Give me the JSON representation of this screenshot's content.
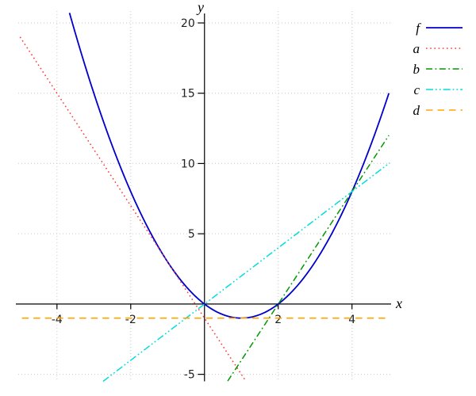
{
  "figure": {
    "kind": "function plot",
    "background": "#ffffff",
    "axis_color": "#000000",
    "grid_color": "#c9c9c9",
    "tick_label_color": "#222222"
  },
  "chart_data": {
    "type": "line",
    "title": "",
    "xlabel": "x",
    "ylabel": "y",
    "xlim": [
      -5.05,
      5.05
    ],
    "ylim": [
      -5.5,
      20.9
    ],
    "xticks": [
      -4,
      -2,
      2,
      4
    ],
    "yticks": [
      -5,
      5,
      10,
      15,
      20
    ],
    "grid": true,
    "legend_position": "top-right",
    "series": [
      {
        "name": "f",
        "formula": "x^2 - 2x",
        "coeffs": [
          1,
          -2,
          0
        ],
        "domain": [
          -3.66,
          5.0
        ],
        "color": "#0000cc",
        "dash": "solid",
        "width": 1.8,
        "key_points": [
          [
            -2,
            8
          ],
          [
            0,
            0
          ],
          [
            1,
            -1
          ],
          [
            2,
            0
          ],
          [
            4,
            8
          ],
          [
            5,
            15
          ]
        ]
      },
      {
        "name": "a",
        "formula": "-4x - 1",
        "coeffs": [
          0,
          -4,
          -1
        ],
        "domain": [
          -5.0,
          1.12
        ],
        "color": "#ff3333",
        "dash": "dotted",
        "width": 1.5,
        "key_points": [
          [
            -5,
            19
          ],
          [
            -1,
            3
          ],
          [
            0,
            -1
          ]
        ]
      },
      {
        "name": "b",
        "formula": "4x - 8",
        "coeffs": [
          0,
          4,
          -8
        ],
        "domain": [
          0.63,
          5.0
        ],
        "color": "#009900",
        "dash": "dashdot",
        "width": 1.5,
        "key_points": [
          [
            2,
            0
          ],
          [
            4,
            8
          ],
          [
            5,
            12
          ]
        ]
      },
      {
        "name": "c",
        "formula": "2x",
        "coeffs": [
          0,
          2,
          0
        ],
        "domain": [
          -2.75,
          5.02
        ],
        "color": "#00dddd",
        "dash": "dashdotdot",
        "width": 1.5,
        "key_points": [
          [
            -2.75,
            -5.5
          ],
          [
            0,
            0
          ],
          [
            4,
            8
          ],
          [
            5,
            10
          ]
        ]
      },
      {
        "name": "d",
        "formula": "-1",
        "coeffs": [
          0,
          0,
          -1
        ],
        "domain": [
          -4.95,
          5.0
        ],
        "color": "#ffa500",
        "dash": "dashed",
        "width": 1.6,
        "key_points": [
          [
            -5,
            -1
          ],
          [
            1,
            -1
          ],
          [
            5,
            -1
          ]
        ]
      }
    ]
  }
}
